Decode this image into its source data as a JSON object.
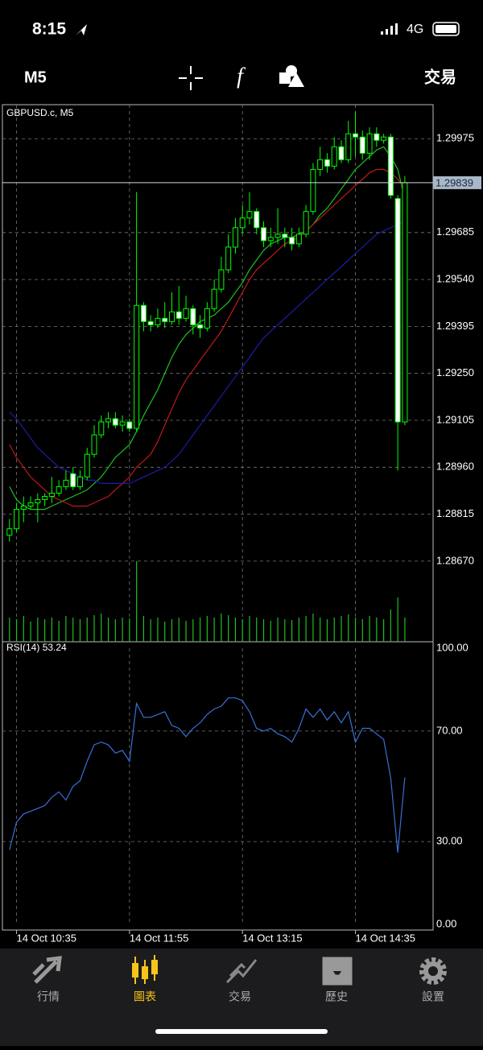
{
  "status_bar": {
    "time": "8:15",
    "network": "4G"
  },
  "toolbar": {
    "timeframe": "M5",
    "trade": "交易"
  },
  "chart_data": [
    {
      "type": "candlestick",
      "title": "GBPUSD.c, M5",
      "open": [
        1.2875,
        1.2877,
        1.2883,
        1.2884,
        1.2885,
        1.2886,
        1.2887,
        1.2888,
        1.289,
        1.2894,
        1.289,
        1.2893,
        1.29,
        1.2906,
        1.291,
        1.2911,
        1.2909,
        1.291,
        1.2908,
        1.2946,
        1.2941,
        1.294,
        1.2942,
        1.2941,
        1.2944,
        1.2942,
        1.2945,
        1.294,
        1.2939,
        1.2945,
        1.2951,
        1.2957,
        1.2964,
        1.297,
        1.2973,
        1.2975,
        1.297,
        1.2966,
        1.2967,
        1.2968,
        1.2967,
        1.2965,
        1.2968,
        1.2975,
        1.2988,
        1.2991,
        1.2989,
        1.2995,
        1.2991,
        1.2999,
        1.2998,
        1.2993,
        1.2999,
        1.2997,
        1.2998,
        1.2979,
        1.291
      ],
      "high": [
        1.288,
        1.2885,
        1.2887,
        1.2887,
        1.2888,
        1.2888,
        1.2893,
        1.2892,
        1.2895,
        1.2896,
        1.2895,
        1.2902,
        1.2909,
        1.2912,
        1.2913,
        1.2913,
        1.2912,
        1.2911,
        1.2981,
        1.2947,
        1.2943,
        1.2945,
        1.2947,
        1.295,
        1.2952,
        1.2949,
        1.2946,
        1.2943,
        1.2947,
        1.2954,
        1.2961,
        1.2968,
        1.2973,
        1.2977,
        1.2981,
        1.2976,
        1.2972,
        1.297,
        1.2976,
        1.297,
        1.297,
        1.297,
        1.2977,
        1.299,
        1.2995,
        1.2993,
        1.2998,
        1.2997,
        1.3003,
        1.3006,
        1.3,
        1.3001,
        1.3001,
        1.2999,
        1.2999,
        1.298,
        1.2986
      ],
      "low": [
        1.2873,
        1.2876,
        1.2879,
        1.2883,
        1.2879,
        1.2884,
        1.2885,
        1.2887,
        1.2889,
        1.2889,
        1.2889,
        1.2892,
        1.2899,
        1.2905,
        1.2908,
        1.2908,
        1.2907,
        1.2907,
        1.2907,
        1.2938,
        1.2938,
        1.2939,
        1.2939,
        1.294,
        1.294,
        1.2941,
        1.2937,
        1.2936,
        1.2938,
        1.2944,
        1.295,
        1.2956,
        1.2962,
        1.2968,
        1.2971,
        1.2968,
        1.2964,
        1.2964,
        1.2965,
        1.2964,
        1.2963,
        1.2964,
        1.2967,
        1.2974,
        1.2986,
        1.2987,
        1.2988,
        1.299,
        1.299,
        1.2992,
        1.2991,
        1.2991,
        1.2995,
        1.2996,
        1.2979,
        1.2895,
        1.2909
      ],
      "close": [
        1.2877,
        1.2883,
        1.2884,
        1.2885,
        1.2886,
        1.2887,
        1.2888,
        1.289,
        1.2892,
        1.289,
        1.2893,
        1.29,
        1.2906,
        1.291,
        1.2911,
        1.2909,
        1.291,
        1.2908,
        1.2946,
        1.2941,
        1.294,
        1.2942,
        1.2941,
        1.2944,
        1.2942,
        1.2945,
        1.294,
        1.2939,
        1.2945,
        1.2951,
        1.2957,
        1.2964,
        1.297,
        1.2973,
        1.2975,
        1.297,
        1.2966,
        1.2967,
        1.2968,
        1.2967,
        1.2965,
        1.2968,
        1.2975,
        1.2988,
        1.2991,
        1.2989,
        1.2995,
        1.2991,
        1.2999,
        1.2998,
        1.2993,
        1.2999,
        1.2997,
        1.2998,
        1.298,
        1.291,
        1.29839
      ],
      "up_color": "#00ff00",
      "down_color": "#ffffff",
      "series": [
        {
          "color": "#1fc01f",
          "values": [
            1.289,
            1.2886,
            1.2884,
            1.2883,
            1.2883,
            1.2883,
            1.2884,
            1.2885,
            1.2886,
            1.2887,
            1.2888,
            1.2889,
            1.2891,
            1.2893,
            1.2896,
            1.2899,
            1.2901,
            1.2903,
            1.2907,
            1.2912,
            1.2916,
            1.292,
            1.2925,
            1.293,
            1.2934,
            1.2937,
            1.2939,
            1.2941,
            1.2942,
            1.2943,
            1.2945,
            1.2947,
            1.295,
            1.2953,
            1.2957,
            1.296,
            1.2963,
            1.2965,
            1.2966,
            1.2967,
            1.2967,
            1.2968,
            1.2969,
            1.2971,
            1.2974,
            1.2976,
            1.2979,
            1.2982,
            1.2985,
            1.2988,
            1.299,
            1.2992,
            1.2994,
            1.2995,
            1.2992,
            1.2988,
            1.2979
          ]
        },
        {
          "color": "#c01818",
          "values": [
            1.2903,
            1.2899,
            1.2896,
            1.2893,
            1.2891,
            1.2889,
            1.2887,
            1.2886,
            1.2885,
            1.2884,
            1.2884,
            1.2884,
            1.2885,
            1.2886,
            1.2887,
            1.2889,
            1.2891,
            1.2893,
            1.2896,
            1.2898,
            1.29,
            1.2904,
            1.2909,
            1.2914,
            1.2919,
            1.2923,
            1.2926,
            1.2929,
            1.2932,
            1.2935,
            1.2938,
            1.2942,
            1.2946,
            1.295,
            1.2954,
            1.2957,
            1.2959,
            1.2961,
            1.2963,
            1.2965,
            1.2966,
            1.2967,
            1.2969,
            1.2971,
            1.2973,
            1.2975,
            1.2977,
            1.2979,
            1.2981,
            1.2983,
            1.2985,
            1.2987,
            1.2988,
            1.2988,
            1.2987,
            1.2985,
            1.2982
          ]
        },
        {
          "color": "#1c1ca8",
          "values": [
            1.2913,
            1.2911,
            1.2908,
            1.2905,
            1.2902,
            1.29,
            1.2898,
            1.2896,
            1.2895,
            1.2894,
            1.2893,
            1.2892,
            1.2892,
            1.2891,
            1.2891,
            1.2891,
            1.2891,
            1.2891,
            1.2892,
            1.2893,
            1.2894,
            1.2895,
            1.2896,
            1.2898,
            1.29,
            1.2903,
            1.2906,
            1.2909,
            1.2912,
            1.2915,
            1.2918,
            1.2921,
            1.2924,
            1.2927,
            1.293,
            1.2933,
            1.2936,
            1.2938,
            1.294,
            1.2942,
            1.2944,
            1.2946,
            1.2948,
            1.295,
            1.2952,
            1.2954,
            1.2956,
            1.2958,
            1.296,
            1.2962,
            1.2964,
            1.2966,
            1.2968,
            1.2969,
            1.297,
            1.2971,
            1.2972
          ]
        }
      ],
      "volume": [
        30,
        28,
        32,
        25,
        30,
        28,
        30,
        26,
        32,
        30,
        28,
        30,
        33,
        35,
        30,
        28,
        30,
        29,
        100,
        32,
        28,
        30,
        25,
        28,
        30,
        26,
        28,
        30,
        32,
        30,
        35,
        33,
        30,
        28,
        32,
        30,
        28,
        26,
        30,
        28,
        27,
        30,
        32,
        35,
        30,
        28,
        30,
        32,
        34,
        30,
        28,
        32,
        30,
        28,
        40,
        55,
        30
      ],
      "volume_color": "#1fc01f",
      "current_price": 1.29839,
      "ylim": [
        1.28421,
        1.3008
      ],
      "yticks": [
        1.29975,
        1.29685,
        {
          "value": 1.2954,
          "label": "1.29540"
        },
        1.29395,
        {
          "value": 1.2925,
          "label": "1.29250"
        },
        1.29105,
        {
          "value": 1.2896,
          "label": "1.28960"
        },
        1.28815,
        {
          "value": 1.2867,
          "label": "1.28670"
        }
      ],
      "xlim": [
        -1,
        60
      ],
      "xticks": [
        {
          "value": 1,
          "label": "14 Oct 10:35"
        },
        {
          "value": 17,
          "label": "14 Oct 11:55"
        },
        {
          "value": 33,
          "label": "14 Oct 13:15"
        },
        {
          "value": 49,
          "label": "14 Oct 14:35"
        }
      ],
      "grid": true
    },
    {
      "type": "line",
      "title": "RSI(14)",
      "series": [
        {
          "color": "#3a6fd8",
          "values": [
            27,
            37,
            40,
            41,
            42,
            43,
            46,
            48,
            45,
            50,
            52,
            59,
            65,
            66,
            65,
            62,
            63,
            59,
            80,
            75,
            75,
            76,
            77,
            72,
            71,
            68,
            71,
            73,
            76,
            78,
            79,
            82,
            82,
            81,
            77,
            71,
            70,
            71,
            69,
            68,
            66,
            71,
            78,
            75,
            78,
            74,
            77,
            73,
            77,
            66,
            71,
            71,
            69,
            67,
            53,
            26,
            53.24
          ]
        }
      ],
      "ylim": [
        0,
        100
      ],
      "yticks": [
        {
          "value": 100,
          "label": "100.00"
        },
        {
          "value": 70,
          "label": "70.00"
        },
        {
          "value": 30,
          "label": "30.00"
        },
        {
          "value": 0,
          "label": "0.00"
        }
      ],
      "xlim": [
        -1,
        60
      ]
    }
  ],
  "tab_bar": {
    "items": [
      "行情",
      "圖表",
      "交易",
      "歷史",
      "設置"
    ],
    "active": 1
  }
}
